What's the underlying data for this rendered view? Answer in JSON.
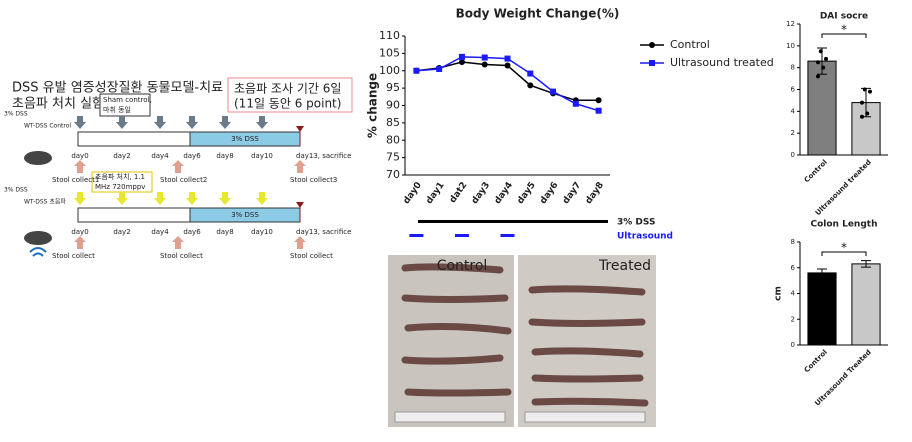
{
  "chart_data": [
    {
      "type": "line",
      "title": "Body Weight Change(%)",
      "ylabel": "% change",
      "categories": [
        "day0",
        "day1",
        "dat2",
        "day3",
        "day4",
        "day5",
        "day6",
        "day7",
        "day8"
      ],
      "series": [
        {
          "name": "Control",
          "color": "#000000",
          "marker": "circle",
          "values": [
            100,
            100.8,
            102.5,
            101.8,
            101.5,
            95.8,
            93.5,
            91.5,
            91.5
          ]
        },
        {
          "name": "Ultrasound treated",
          "color": "#1a1aff",
          "marker": "square",
          "values": [
            100,
            100.5,
            104,
            103.8,
            103.5,
            99.2,
            94,
            90.5,
            88.5
          ]
        }
      ],
      "ylim": [
        70,
        110
      ],
      "yticks": [
        70,
        75,
        80,
        85,
        90,
        95,
        100,
        105,
        110
      ],
      "annotations": [
        "3% DSS",
        "Ultrasound"
      ]
    },
    {
      "type": "bar",
      "title": "DAI socre",
      "categories": [
        "Control",
        "Ultrasound treated"
      ],
      "values": [
        8.6,
        4.8
      ],
      "errors": [
        1.2,
        1.3
      ],
      "points": [
        [
          9.5,
          8.8,
          8.5,
          8,
          7.2
        ],
        [
          6,
          5.8,
          4.8,
          3.8,
          3.5
        ]
      ],
      "colors": [
        "#7f7f7f",
        "#c8c8c8"
      ],
      "annotation": "*",
      "ylim": [
        0,
        12
      ],
      "yticks": [
        0,
        2,
        4,
        6,
        8,
        10,
        12
      ]
    },
    {
      "type": "bar",
      "title": "Colon Length",
      "ylabel": "cm",
      "categories": [
        "Control",
        "Ultrasound Treated"
      ],
      "values": [
        5.6,
        6.3
      ],
      "errors": [
        0.3,
        0.25
      ],
      "colors": [
        "#000000",
        "#c8c8c8"
      ],
      "annotation": "*",
      "ylim": [
        0,
        8
      ],
      "yticks": [
        0,
        2,
        4,
        6,
        8
      ]
    }
  ],
  "diagram": {
    "title_lines": [
      "DSS 유발 염증성장질환 동물모델-치료",
      "초음파 처치 실험"
    ],
    "period_lines": [
      "초음파 조사 기간 6일",
      "(11일 동안 6 point)"
    ],
    "sham_lines": [
      "Sham control,",
      "마취 동일"
    ],
    "ultrasound_lines": [
      "초음파 처치, 1.1",
      "MHz 720mppv"
    ],
    "control": {
      "syringe": "3% DSS",
      "label": "WT-DSS Control",
      "bar": "3% DSS",
      "days": [
        "day0",
        "day2",
        "day4",
        "day6",
        "day8",
        "day10"
      ],
      "end": "day13, sacrifice",
      "stool": [
        "Stool collect1",
        "Stool collect2",
        "Stool collect3"
      ]
    },
    "treated": {
      "syringe": "3% DSS",
      "label": "WT-DSS 초음파",
      "bar": "3% DSS",
      "days": [
        "day0",
        "day2",
        "day4",
        "day6",
        "day8",
        "day10"
      ],
      "end": "day13, sacrifice",
      "stool": [
        "Stool collect",
        "Stool collect",
        "Stool collect"
      ]
    }
  },
  "photos": {
    "left": "Control",
    "right": "Treated"
  }
}
